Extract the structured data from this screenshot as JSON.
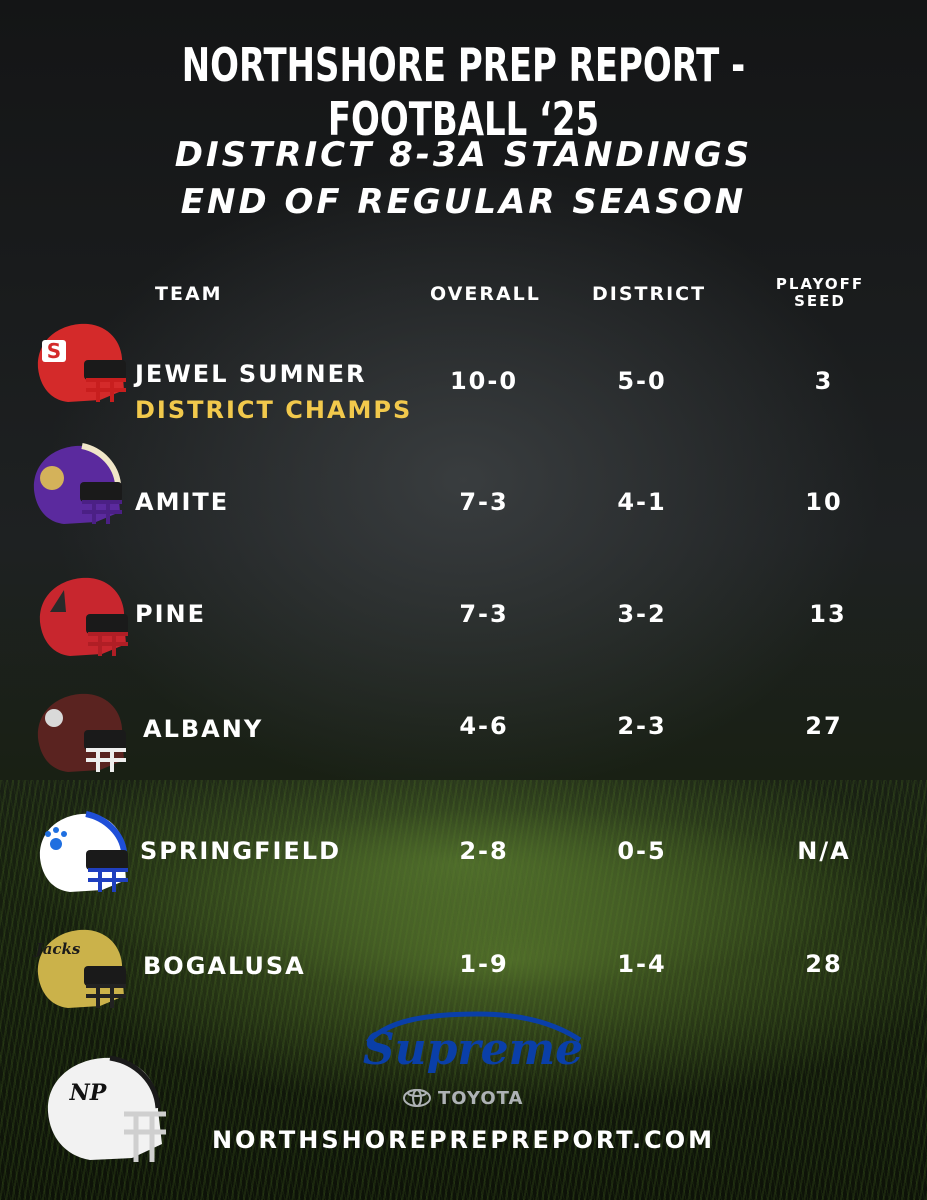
{
  "header": {
    "title": "NORTHSHORE PREP REPORT - FOOTBALL ‘25",
    "subtitle_line1": "DISTRICT 8-3A STANDINGS",
    "subtitle_line2": "END OF REGULAR SEASON"
  },
  "columns": {
    "team": "TEAM",
    "overall": "OVERALL",
    "district": "DISTRICT",
    "seed_line1": "PLAYOFF",
    "seed_line2": "SEED"
  },
  "teams": [
    {
      "name": "JEWEL SUMNER",
      "note": "DISTRICT CHAMPS",
      "overall": "10-0",
      "district": "5-0",
      "seed": "3",
      "helmet_color": "#d42a2a",
      "helmet_logo": "S"
    },
    {
      "name": "AMITE",
      "note": "",
      "overall": "7-3",
      "district": "4-1",
      "seed": "10",
      "helmet_color": "#5b2a9e",
      "helmet_logo": ""
    },
    {
      "name": "PINE",
      "note": "",
      "overall": "7-3",
      "district": "3-2",
      "seed": "13",
      "helmet_color": "#c8262e",
      "helmet_logo": ""
    },
    {
      "name": "ALBANY",
      "note": "",
      "overall": "4-6",
      "district": "2-3",
      "seed": "27",
      "helmet_color": "#5a2320",
      "helmet_logo": ""
    },
    {
      "name": "SPRINGFIELD",
      "note": "",
      "overall": "2-8",
      "district": "0-5",
      "seed": "N/A",
      "helmet_color": "#ffffff",
      "helmet_logo": ""
    },
    {
      "name": "BOGALUSA",
      "note": "",
      "overall": "1-9",
      "district": "1-4",
      "seed": "28",
      "helmet_color": "#cbb24a",
      "helmet_logo": "Jacks"
    }
  ],
  "sponsor": {
    "name": "Supreme",
    "brand": "TOYOTA"
  },
  "footer": {
    "website": "NORTHSHOREPREPREPORT.COM",
    "logo_text": "NP"
  },
  "colors": {
    "accent_gold": "#f2c94c",
    "sponsor_blue": "#0a3fa8"
  }
}
